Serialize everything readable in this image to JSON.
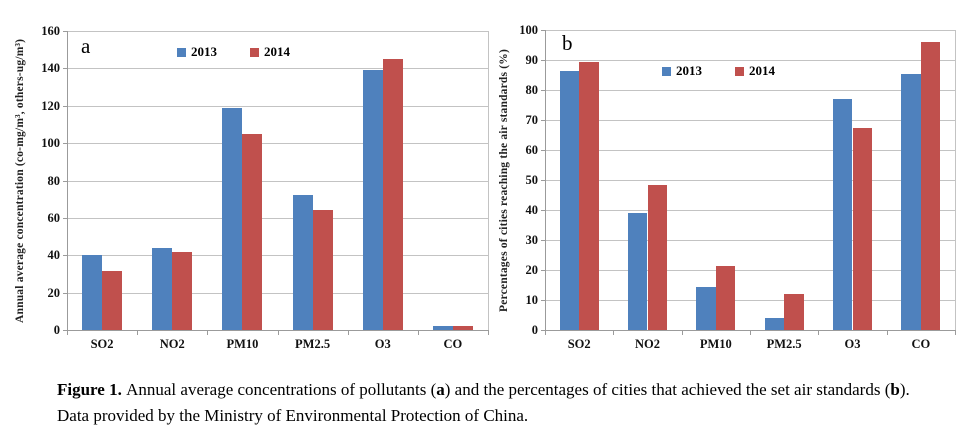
{
  "colors": {
    "series_2013": "#4F81BD",
    "series_2014": "#C0504D",
    "gridline": "#c3c3c3",
    "axis": "#9b9b9b",
    "background": "#ffffff"
  },
  "caption": {
    "segments": [
      {
        "text": "Figure 1. ",
        "bold": true
      },
      {
        "text": "Annual average concentrations of pollutants (",
        "bold": false
      },
      {
        "text": "a",
        "bold": true
      },
      {
        "text": ") and the percentages of cities that achieved the set air standards (",
        "bold": false
      },
      {
        "text": "b",
        "bold": true
      },
      {
        "text": "). Data provided by the Ministry of Environmental Protection of China.",
        "bold": false
      }
    ]
  },
  "chart_data": [
    {
      "id": "a",
      "type": "bar",
      "panel_label": "a",
      "title": "",
      "xlabel": "",
      "ylabel": "Annual average concentration (co-mg/m³, others-ug/m³)",
      "categories": [
        "SO2",
        "NO2",
        "PM10",
        "PM2.5",
        "O3",
        "CO"
      ],
      "series": [
        {
          "name": "2013",
          "color": "#4F81BD",
          "values": [
            40,
            44,
            119,
            72,
            139,
            2
          ]
        },
        {
          "name": "2014",
          "color": "#C0504D",
          "values": [
            31.5,
            42,
            105,
            64,
            145,
            2
          ]
        }
      ],
      "ylim": [
        0,
        160
      ],
      "ytick_step": 20,
      "grid": true,
      "legend_position": "top-inside"
    },
    {
      "id": "b",
      "type": "bar",
      "panel_label": "b",
      "title": "",
      "xlabel": "",
      "ylabel": "Percentages of cities reaching the air standards (%)",
      "categories": [
        "SO2",
        "NO2",
        "PM10",
        "PM2.5",
        "O3",
        "CO"
      ],
      "series": [
        {
          "name": "2013",
          "color": "#4F81BD",
          "values": [
            86.5,
            39,
            14.5,
            4,
            77,
            85.5
          ]
        },
        {
          "name": "2014",
          "color": "#C0504D",
          "values": [
            89.5,
            48.5,
            21.5,
            12,
            67.5,
            96
          ]
        }
      ],
      "ylim": [
        0,
        100
      ],
      "ytick_step": 10,
      "grid": true,
      "legend_position": "top-inside"
    }
  ]
}
